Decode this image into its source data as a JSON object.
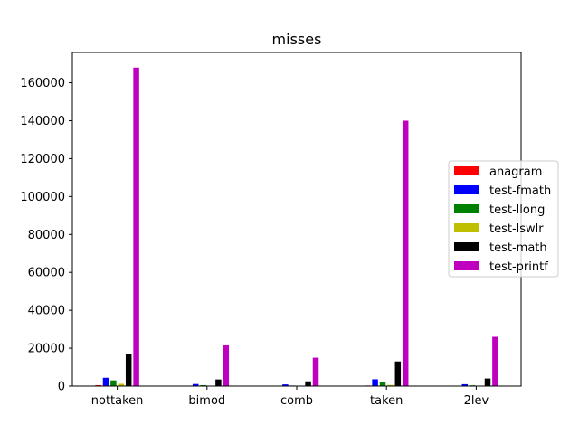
{
  "chart_data": {
    "type": "bar",
    "title": "misses",
    "xlabel": "",
    "ylabel": "",
    "categories": [
      "nottaken",
      "bimod",
      "comb",
      "taken",
      "2lev"
    ],
    "ylim": [
      0,
      176000
    ],
    "yticks": [
      0,
      20000,
      40000,
      60000,
      80000,
      100000,
      120000,
      140000,
      160000
    ],
    "grid": false,
    "legend_position": "center-right",
    "series": [
      {
        "name": "anagram",
        "color": "#ff0000",
        "values": [
          500,
          150,
          100,
          300,
          150
        ]
      },
      {
        "name": "test-fmath",
        "color": "#0000ff",
        "values": [
          4400,
          1100,
          900,
          3600,
          1000
        ]
      },
      {
        "name": "test-llong",
        "color": "#008000",
        "values": [
          3000,
          500,
          300,
          2000,
          400
        ]
      },
      {
        "name": "test-lswlr",
        "color": "#bfbf00",
        "values": [
          1200,
          200,
          100,
          600,
          150
        ]
      },
      {
        "name": "test-math",
        "color": "#000000",
        "values": [
          17000,
          3500,
          2500,
          13000,
          4000
        ]
      },
      {
        "name": "test-printf",
        "color": "#bf00bf",
        "values": [
          168000,
          21500,
          15000,
          140000,
          26000
        ]
      }
    ]
  }
}
